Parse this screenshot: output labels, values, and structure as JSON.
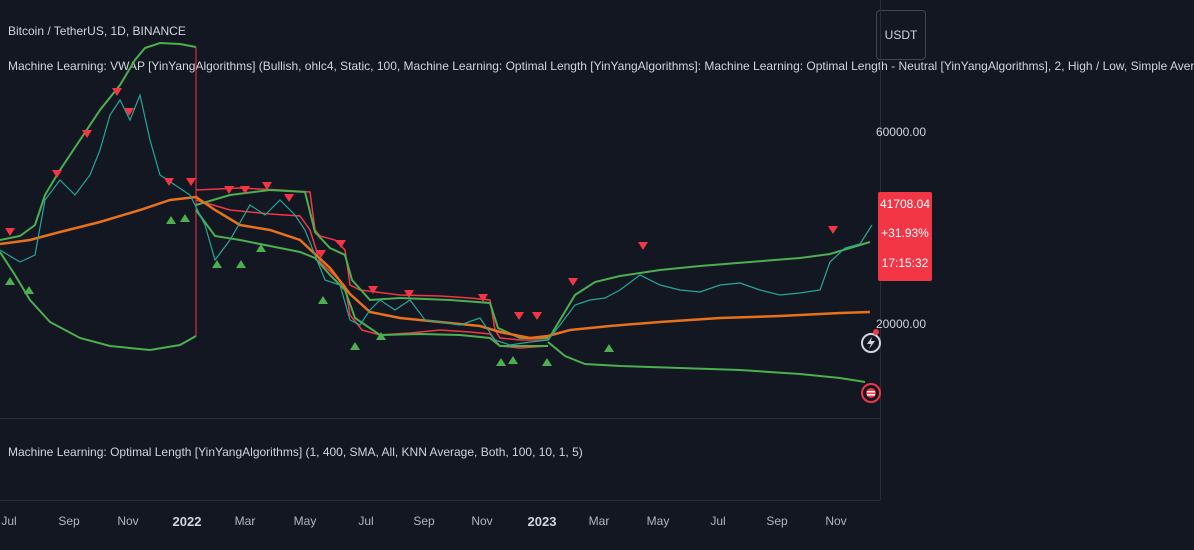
{
  "header": {
    "symbol_title": "Bitcoin / TetherUS, 1D, BINANCE",
    "indicator1": "Machine Learning: VWAP [YinYangAlgorithms] (Bullish, ohlc4, Static, 100, Machine Learning: Optimal Length [YinYangAlgorithms]: Machine Learning: Optimal Length - Neutral [YinYangAlgorithms], 2, High / Low, Simple Aver"
  },
  "pane2": {
    "indicator2": "Machine Learning: Optimal Length [YinYangAlgorithms] (1, 400, SMA, All, KNN Average, Both, 100, 10, 1, 5)"
  },
  "price_scale": {
    "currency": "USDT",
    "ticks": [
      "60000.00",
      "20000.00"
    ],
    "last_price": "41708.04",
    "change_pct": "+31.93%",
    "countdown": "17:15:32"
  },
  "time_scale": {
    "labels": [
      "Jul",
      "Sep",
      "Nov",
      "2022",
      "Mar",
      "May",
      "Jul",
      "Sep",
      "Nov",
      "2023",
      "Mar",
      "May",
      "Jul",
      "Sep",
      "Nov"
    ]
  },
  "colors": {
    "background": "#131722",
    "green_band": "#4caf50",
    "red_band": "#f23645",
    "vwap": "#e8711b",
    "candle_up": "#26a69a",
    "candle_down": "#ef5350"
  }
}
